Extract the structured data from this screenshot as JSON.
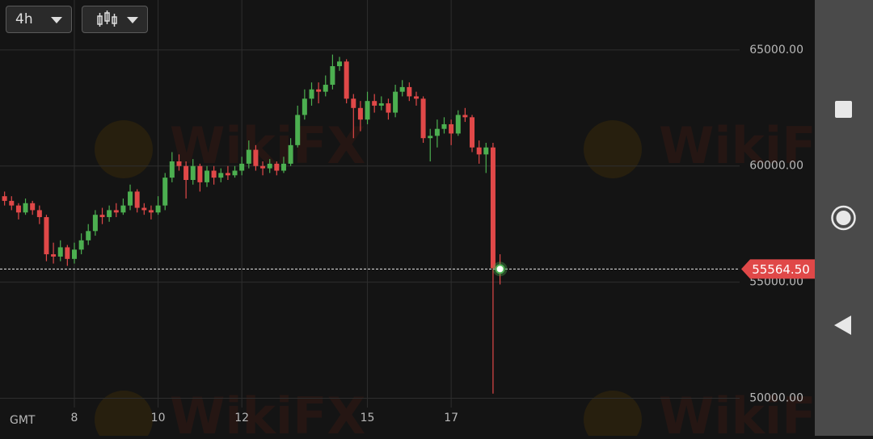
{
  "ui": {
    "interval": "4h",
    "timezone": "GMT",
    "watermark": "WikiFX"
  },
  "chart_data": {
    "type": "candlestick",
    "x": [
      6.333,
      6.5,
      6.667,
      6.833,
      7,
      7.167,
      7.333,
      7.5,
      7.667,
      7.833,
      8,
      8.167,
      8.333,
      8.5,
      8.667,
      8.833,
      9,
      9.167,
      9.333,
      9.5,
      9.667,
      9.833,
      10,
      10.167,
      10.333,
      10.5,
      10.667,
      10.833,
      11,
      11.167,
      11.333,
      11.5,
      11.667,
      11.833,
      12,
      12.167,
      12.333,
      12.5,
      12.667,
      12.833,
      13,
      13.167,
      13.333,
      13.5,
      13.667,
      13.833,
      14,
      14.167,
      14.333,
      14.5,
      14.667,
      14.833,
      15,
      15.167,
      15.333,
      15.5,
      15.667,
      15.833,
      16,
      16.167,
      16.333,
      16.5,
      16.667,
      16.833,
      17,
      17.167,
      17.333,
      17.5,
      17.667,
      17.833,
      18,
      18.167
    ],
    "open": [
      58700,
      58500,
      58300,
      58000,
      58400,
      58100,
      57800,
      56200,
      56100,
      56500,
      56000,
      56400,
      56800,
      57200,
      57900,
      57800,
      58100,
      58000,
      58300,
      58900,
      58200,
      58100,
      58000,
      58300,
      59500,
      60200,
      60000,
      59400,
      60000,
      59300,
      59800,
      59500,
      59700,
      59600,
      59800,
      60100,
      60700,
      60000,
      59900,
      60100,
      59800,
      60100,
      60900,
      62200,
      62900,
      63300,
      63200,
      63500,
      64300,
      64500,
      62900,
      62500,
      62000,
      62800,
      62600,
      62700,
      62300,
      63200,
      63400,
      63000,
      62900,
      61200,
      61300,
      61600,
      61800,
      61400,
      62200,
      62100,
      60800,
      60500,
      60800,
      55600
    ],
    "high": [
      58900,
      58700,
      58400,
      58600,
      58500,
      58300,
      57900,
      56700,
      56800,
      56600,
      56700,
      57100,
      57500,
      58100,
      58200,
      58300,
      58400,
      58600,
      59200,
      59000,
      58400,
      58300,
      58700,
      59700,
      60600,
      60500,
      60200,
      60300,
      60100,
      60000,
      60000,
      59900,
      60000,
      60000,
      60400,
      61100,
      60900,
      60200,
      60300,
      60200,
      60400,
      61200,
      62600,
      63300,
      63600,
      63600,
      63900,
      64800,
      64700,
      64600,
      63100,
      62800,
      63200,
      63100,
      63000,
      62900,
      63500,
      63700,
      63600,
      63200,
      63000,
      61600,
      62000,
      62100,
      62000,
      62400,
      62500,
      62200,
      61100,
      61000,
      61000,
      56200
    ],
    "low": [
      58300,
      58100,
      57700,
      57900,
      57900,
      57500,
      55900,
      55800,
      55900,
      55700,
      55800,
      56200,
      56600,
      57000,
      57500,
      57600,
      57800,
      57900,
      58100,
      58000,
      57900,
      57700,
      57900,
      58100,
      59300,
      59800,
      58600,
      59200,
      58900,
      59100,
      59200,
      59300,
      59400,
      59500,
      59600,
      59900,
      59800,
      59600,
      59700,
      59600,
      59700,
      60000,
      60800,
      62000,
      62600,
      62700,
      63000,
      63300,
      64100,
      62700,
      61200,
      61500,
      61800,
      62300,
      62400,
      62000,
      62100,
      63000,
      62800,
      62600,
      61000,
      60200,
      60800,
      61400,
      60900,
      61300,
      61900,
      60600,
      60100,
      59700,
      50200,
      54900
    ],
    "close": [
      58500,
      58300,
      58000,
      58400,
      58100,
      57800,
      56200,
      56100,
      56500,
      56000,
      56400,
      56800,
      57200,
      57900,
      57800,
      58100,
      58000,
      58300,
      58900,
      58200,
      58100,
      58000,
      58300,
      59500,
      60200,
      60000,
      59400,
      60000,
      59300,
      59800,
      59500,
      59700,
      59600,
      59800,
      60100,
      60700,
      60000,
      59900,
      60100,
      59800,
      60100,
      60900,
      62200,
      62900,
      63300,
      63200,
      63500,
      64300,
      64500,
      62900,
      62500,
      62000,
      62800,
      62600,
      62700,
      62300,
      63200,
      63400,
      63000,
      62900,
      61200,
      61300,
      61600,
      61800,
      61400,
      62200,
      62100,
      60800,
      60500,
      60800,
      55600,
      55564.5
    ],
    "up_color": "#4caf50",
    "down_color": "#e04848",
    "xlim": [
      6.224,
      23.89
    ],
    "xticks": [
      8,
      10,
      12,
      15,
      17
    ],
    "ylim": [
      49600,
      67150
    ],
    "yticks": [
      {
        "value": 50000,
        "label": "50000.00"
      },
      {
        "value": 55000,
        "label": "55000.00"
      },
      {
        "value": 60000,
        "label": "60000.00"
      },
      {
        "value": 65000,
        "label": "65000.00"
      }
    ],
    "last_price": {
      "value": 55564.5,
      "label": "55564.50"
    },
    "grid": true
  }
}
